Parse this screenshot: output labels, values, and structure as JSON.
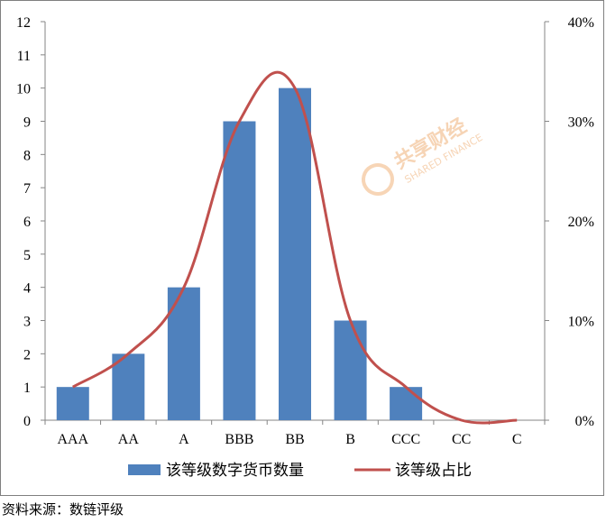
{
  "chart_data": {
    "type": "bar",
    "categories": [
      "AAA",
      "AA",
      "A",
      "BBB",
      "BB",
      "B",
      "CCC",
      "CC",
      "C"
    ],
    "series": [
      {
        "name": "该等级数字货币数量",
        "type": "bar",
        "axis": "left",
        "color": "#4f81bd",
        "values": [
          1,
          2,
          4,
          9,
          10,
          3,
          1,
          0,
          0
        ]
      },
      {
        "name": "该等级占比",
        "type": "line",
        "axis": "right",
        "color": "#c0504d",
        "smooth": true,
        "values": [
          0.0333,
          0.0667,
          0.1333,
          0.3,
          0.3333,
          0.1,
          0.0333,
          0,
          0
        ]
      }
    ],
    "y_left": {
      "lim": [
        0,
        12
      ],
      "ticks": [
        "0",
        "1",
        "2",
        "3",
        "4",
        "5",
        "6",
        "7",
        "8",
        "9",
        "10",
        "11",
        "12"
      ]
    },
    "y_right": {
      "lim": [
        0,
        0.4
      ],
      "ticks": [
        "0%",
        "10%",
        "20%",
        "30%",
        "40%"
      ]
    },
    "legend_position": "bottom",
    "grid": false
  },
  "watermark": {
    "main": "共享财经",
    "sub": "SHARED FINANCE"
  },
  "source_note": "资料来源：数链评级"
}
